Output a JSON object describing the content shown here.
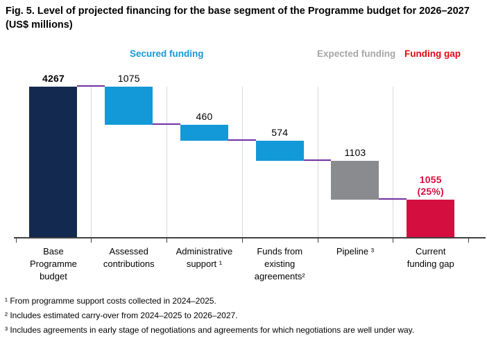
{
  "figure": {
    "title": "Fig. 5. Level of projected financing for the base segment of the Programme budget for 2026–2027 (US$ millions)"
  },
  "chart_data": {
    "type": "bar",
    "subtype": "waterfall",
    "title": "Fig. 5. Level of projected financing for the base segment of the Programme budget for 2026–2027 (US$ millions)",
    "unit": "US$ millions",
    "ylim": [
      0,
      4267
    ],
    "grid": "vertical-category-separators",
    "legend": [
      {
        "label": "Secured funding",
        "color": "#1399d8"
      },
      {
        "label": "Expected funding",
        "color": "#a6a6a6"
      },
      {
        "label": "Funding gap",
        "color": "#e30613"
      }
    ],
    "connector_color": "#7030a0",
    "gridline_color": "#d9d9d9",
    "axis_color": "#404040",
    "bars": [
      {
        "category": "Base\nProgramme\nbudget",
        "value": 4267,
        "kind": "total",
        "color": "#132950",
        "value_label": "4267",
        "label_bold": true,
        "label_color": "#000000"
      },
      {
        "category": "Assessed\ncontributions",
        "value": 1075,
        "kind": "secured",
        "color": "#1399d8",
        "value_label": "1075",
        "label_bold": false,
        "label_color": "#000000"
      },
      {
        "category": "Administrative\nsupport ¹",
        "value": 460,
        "kind": "secured",
        "color": "#1399d8",
        "value_label": "460",
        "label_bold": false,
        "label_color": "#000000"
      },
      {
        "category": "Funds from\nexisting\nagreements²",
        "value": 574,
        "kind": "secured",
        "color": "#1399d8",
        "value_label": "574",
        "label_bold": false,
        "label_color": "#000000"
      },
      {
        "category": "Pipeline ³",
        "value": 1103,
        "kind": "expected",
        "color": "#8a8b8e",
        "value_label": "1103",
        "label_bold": false,
        "label_color": "#000000"
      },
      {
        "category": "Current\nfunding gap",
        "value": 1055,
        "kind": "gap",
        "color": "#d40f3f",
        "value_label": "1055\n(25%)",
        "label_bold": true,
        "label_color": "#d40f3f"
      }
    ]
  },
  "footnotes": [
    "¹ From programme support costs collected in 2024–2025.",
    "² Includes estimated carry-over from 2024–2025 to 2026–2027.",
    "³ Includes agreements in early stage of negotiations and agreements for which negotiations are well under way."
  ]
}
